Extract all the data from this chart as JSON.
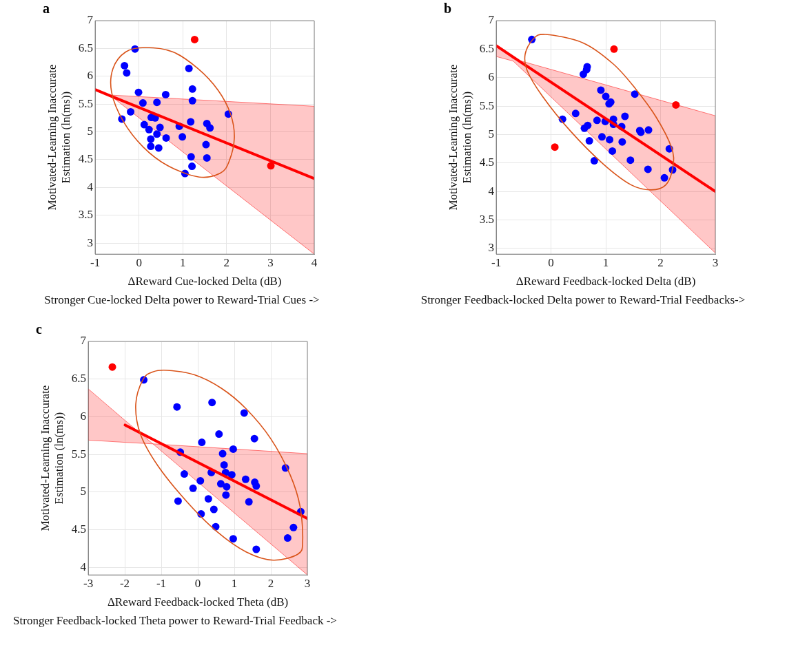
{
  "chart_data": [
    {
      "type": "scatter",
      "title": "a",
      "xlabel": "ΔReward Cue-locked Delta (dB)",
      "ylabel": "Motivated-Learning Inaccurate\nEstimation (ln(ms))",
      "annotations": [
        "Stronger Cue-locked Delta power to Reward-Trial Cues ->"
      ],
      "xlim": [
        -1,
        4
      ],
      "xticks": [
        -1,
        0,
        1,
        2,
        3,
        4
      ],
      "ylim": [
        2.8,
        7
      ],
      "yticks": [
        3,
        3.5,
        4,
        4.5,
        5,
        5.5,
        6,
        6.5,
        7
      ],
      "grid": true,
      "legend": false,
      "marker": "circle",
      "series": [
        {
          "color": "#0000ff",
          "x": [
            -0.09,
            -0.33,
            -0.28,
            1.14,
            1.22,
            1.22,
            0.61,
            -0.01,
            0.09,
            0.41,
            -0.19,
            -0.39,
            0.28,
            0.37,
            0.12,
            0.48,
            0.23,
            0.41,
            0.27,
            0.62,
            0.27,
            0.45,
            0.92,
            0.99,
            1.18,
            1.55,
            1.62,
            1.53,
            1.19,
            1.55,
            1.21,
            1.05,
            2.04
          ],
          "values": [
            6.49,
            6.19,
            6.06,
            6.14,
            5.77,
            5.56,
            5.67,
            5.71,
            5.52,
            5.53,
            5.36,
            5.23,
            5.26,
            5.25,
            5.13,
            5.08,
            5.04,
            4.96,
            4.87,
            4.89,
            4.74,
            4.71,
            5.1,
            4.91,
            5.18,
            5.15,
            5.07,
            4.77,
            4.55,
            4.53,
            4.38,
            4.25,
            5.32
          ]
        },
        {
          "color": "#ff0000",
          "x": [
            1.27,
            3.01
          ],
          "values": [
            6.66,
            4.39
          ]
        },
        {
          "type": "line",
          "color": "#ff0000",
          "marker": "none",
          "x": [
            -1,
            -0.6,
            4
          ],
          "values": [
            5.76,
            5.63,
            4.16
          ],
          "lower": [
            null,
            5.62,
            2.8
          ],
          "upper": [
            null,
            5.66,
            5.46
          ]
        }
      ]
    },
    {
      "type": "scatter",
      "title": "b",
      "xlabel": "ΔReward Feedback-locked Delta (dB)",
      "ylabel": "Motivated-Learning Inaccurate\nEstimation (ln(ms))",
      "annotations": [
        "Stronger Feedback-locked Delta power to Reward-Trial Feedbacks->"
      ],
      "xlim": [
        -1,
        3
      ],
      "xticks": [
        -1,
        0,
        1,
        2,
        3
      ],
      "ylim": [
        2.9,
        7
      ],
      "yticks": [
        3,
        3.5,
        4,
        4.5,
        5,
        5.5,
        6,
        6.5,
        7
      ],
      "grid": true,
      "legend": false,
      "marker": "circle",
      "series": [
        {
          "color": "#0000ff",
          "x": [
            -0.35,
            0.66,
            0.65,
            0.59,
            0.91,
            1.0,
            1.09,
            1.06,
            1.53,
            0.45,
            0.21,
            0.84,
            0.99,
            1.14,
            1.14,
            1.35,
            1.29,
            0.67,
            0.61,
            1.62,
            1.64,
            1.78,
            0.93,
            1.07,
            0.7,
            1.3,
            1.12,
            2.16,
            1.45,
            0.79,
            1.77,
            2.22,
            2.07
          ],
          "values": [
            6.67,
            6.19,
            6.14,
            6.06,
            5.78,
            5.67,
            5.57,
            5.54,
            5.71,
            5.37,
            5.27,
            5.25,
            5.23,
            5.27,
            5.18,
            5.32,
            5.14,
            5.16,
            5.11,
            5.07,
            5.04,
            5.08,
            4.96,
            4.91,
            4.89,
            4.87,
            4.71,
            4.75,
            4.55,
            4.54,
            4.39,
            4.38,
            4.24
          ]
        },
        {
          "color": "#ff0000",
          "x": [
            1.15,
            2.28,
            0.07
          ],
          "values": [
            6.5,
            5.52,
            4.78
          ]
        },
        {
          "type": "line",
          "color": "#ff0000",
          "marker": "none",
          "x": [
            -1,
            -0.69,
            3
          ],
          "values": [
            6.56,
            6.36,
            4.0
          ],
          "lower": [
            6.37,
            6.29,
            2.92
          ],
          "upper": [
            6.57,
            6.33,
            5.33
          ]
        }
      ]
    },
    {
      "type": "scatter",
      "title": "c",
      "xlabel": "ΔReward Feedback-locked Theta (dB)",
      "ylabel": "Motivated-Learning Inaccurate\nEstimation (ln(ms))",
      "annotations": [
        "Stronger Feedback-locked Theta power to Reward-Trial Feedback ->"
      ],
      "xlim": [
        -3,
        3
      ],
      "xticks": [
        -3,
        -2,
        -1,
        0,
        1,
        2,
        3
      ],
      "ylim": [
        3.9,
        7
      ],
      "yticks": [
        4,
        4.5,
        5,
        5.5,
        6,
        6.5,
        7
      ],
      "grid": true,
      "legend": false,
      "marker": "circle",
      "series": [
        {
          "color": "#0000ff",
          "x": [
            -1.48,
            -0.57,
            0.39,
            1.27,
            0.58,
            1.55,
            0.11,
            0.97,
            -0.48,
            0.68,
            0.72,
            2.4,
            0.76,
            0.37,
            0.93,
            -0.37,
            1.31,
            0.07,
            1.56,
            1.6,
            0.63,
            0.79,
            -0.13,
            0.77,
            1.4,
            -0.54,
            0.29,
            0.44,
            2.82,
            0.09,
            0.49,
            2.62,
            2.46,
            0.97,
            1.6
          ],
          "values": [
            6.49,
            6.13,
            6.19,
            6.05,
            5.77,
            5.71,
            5.66,
            5.57,
            5.53,
            5.51,
            5.36,
            5.32,
            5.26,
            5.26,
            5.23,
            5.24,
            5.17,
            5.15,
            5.13,
            5.08,
            5.11,
            5.07,
            5.05,
            4.96,
            4.87,
            4.88,
            4.91,
            4.77,
            4.74,
            4.71,
            4.54,
            4.53,
            4.39,
            4.38,
            4.24
          ]
        },
        {
          "color": "#ff0000",
          "x": [
            -2.34
          ],
          "values": [
            6.66
          ]
        },
        {
          "type": "line",
          "color": "#ff0000",
          "marker": "none",
          "x": [
            -3,
            -1.99,
            -1.23,
            3
          ],
          "values": [
            null,
            5.89,
            5.7,
            4.65
          ],
          "lower": [
            5.69,
            5.66,
            5.64,
            3.9
          ],
          "upper": [
            6.37,
            5.95,
            5.64,
            5.51
          ]
        }
      ]
    }
  ]
}
